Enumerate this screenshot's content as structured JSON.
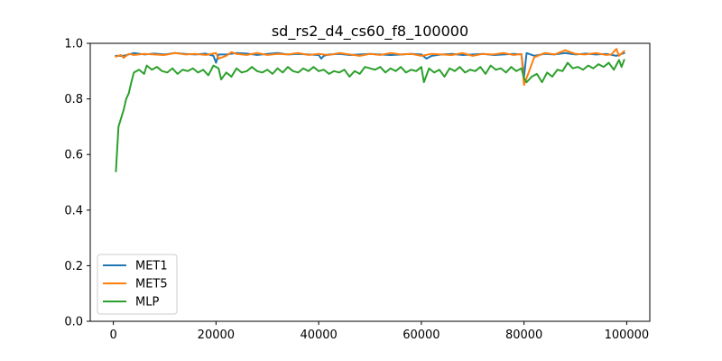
{
  "chart_data": {
    "type": "line",
    "title": "sd_rs2_d4_cs60_f8_100000",
    "xlabel": "",
    "ylabel": "",
    "xlim": [
      -4500,
      104500
    ],
    "ylim": [
      0.0,
      1.0
    ],
    "x_ticks": [
      0,
      20000,
      40000,
      60000,
      80000,
      100000
    ],
    "x_tick_labels": [
      "0",
      "20000",
      "40000",
      "60000",
      "80000",
      "100000"
    ],
    "y_ticks": [
      0.0,
      0.2,
      0.4,
      0.6,
      0.8,
      1.0
    ],
    "y_tick_labels": [
      "0.0",
      "0.2",
      "0.4",
      "0.6",
      "0.8",
      "1.0"
    ],
    "grid": false,
    "legend_position": "lower-left",
    "series": [
      {
        "name": "MET1",
        "color": "#1f77b4",
        "points": [
          [
            500,
            0.955
          ],
          [
            2000,
            0.955
          ],
          [
            3000,
            0.96
          ],
          [
            4000,
            0.965
          ],
          [
            6000,
            0.96
          ],
          [
            8000,
            0.963
          ],
          [
            10000,
            0.96
          ],
          [
            12000,
            0.965
          ],
          [
            14000,
            0.962
          ],
          [
            16000,
            0.96
          ],
          [
            18000,
            0.963
          ],
          [
            19500,
            0.955
          ],
          [
            20000,
            0.93
          ],
          [
            20500,
            0.96
          ],
          [
            22000,
            0.96
          ],
          [
            24000,
            0.965
          ],
          [
            26000,
            0.963
          ],
          [
            28000,
            0.958
          ],
          [
            30000,
            0.962
          ],
          [
            32000,
            0.965
          ],
          [
            34000,
            0.96
          ],
          [
            36000,
            0.962
          ],
          [
            38000,
            0.96
          ],
          [
            40000,
            0.958
          ],
          [
            40500,
            0.945
          ],
          [
            41000,
            0.955
          ],
          [
            42000,
            0.96
          ],
          [
            44000,
            0.962
          ],
          [
            46000,
            0.958
          ],
          [
            48000,
            0.96
          ],
          [
            50000,
            0.962
          ],
          [
            52000,
            0.96
          ],
          [
            54000,
            0.958
          ],
          [
            56000,
            0.96
          ],
          [
            58000,
            0.962
          ],
          [
            60000,
            0.96
          ],
          [
            61000,
            0.945
          ],
          [
            62000,
            0.955
          ],
          [
            64000,
            0.96
          ],
          [
            66000,
            0.962
          ],
          [
            68000,
            0.958
          ],
          [
            70000,
            0.96
          ],
          [
            72000,
            0.962
          ],
          [
            74000,
            0.958
          ],
          [
            76000,
            0.96
          ],
          [
            78000,
            0.962
          ],
          [
            79500,
            0.96
          ],
          [
            80000,
            0.88
          ],
          [
            80500,
            0.965
          ],
          [
            82000,
            0.955
          ],
          [
            84000,
            0.962
          ],
          [
            86000,
            0.96
          ],
          [
            88000,
            0.965
          ],
          [
            90000,
            0.96
          ],
          [
            92000,
            0.963
          ],
          [
            94000,
            0.96
          ],
          [
            96000,
            0.962
          ],
          [
            98000,
            0.955
          ],
          [
            99500,
            0.965
          ]
        ]
      },
      {
        "name": "MET5",
        "color": "#ff7f0e",
        "points": [
          [
            500,
            0.952
          ],
          [
            1500,
            0.958
          ],
          [
            2000,
            0.948
          ],
          [
            3000,
            0.962
          ],
          [
            4000,
            0.958
          ],
          [
            6000,
            0.962
          ],
          [
            8000,
            0.96
          ],
          [
            10000,
            0.958
          ],
          [
            12000,
            0.965
          ],
          [
            14000,
            0.96
          ],
          [
            16000,
            0.962
          ],
          [
            18000,
            0.958
          ],
          [
            20000,
            0.965
          ],
          [
            20500,
            0.945
          ],
          [
            22000,
            0.955
          ],
          [
            23000,
            0.968
          ],
          [
            24000,
            0.962
          ],
          [
            26000,
            0.958
          ],
          [
            28000,
            0.965
          ],
          [
            30000,
            0.958
          ],
          [
            32000,
            0.962
          ],
          [
            34000,
            0.96
          ],
          [
            36000,
            0.965
          ],
          [
            38000,
            0.958
          ],
          [
            40000,
            0.962
          ],
          [
            42000,
            0.958
          ],
          [
            44000,
            0.965
          ],
          [
            46000,
            0.96
          ],
          [
            48000,
            0.955
          ],
          [
            50000,
            0.962
          ],
          [
            52000,
            0.958
          ],
          [
            54000,
            0.965
          ],
          [
            56000,
            0.96
          ],
          [
            58000,
            0.962
          ],
          [
            60000,
            0.955
          ],
          [
            62000,
            0.962
          ],
          [
            64000,
            0.96
          ],
          [
            66000,
            0.958
          ],
          [
            68000,
            0.965
          ],
          [
            70000,
            0.955
          ],
          [
            72000,
            0.962
          ],
          [
            74000,
            0.96
          ],
          [
            76000,
            0.965
          ],
          [
            78000,
            0.958
          ],
          [
            79500,
            0.962
          ],
          [
            80000,
            0.85
          ],
          [
            81000,
            0.9
          ],
          [
            82000,
            0.95
          ],
          [
            84000,
            0.965
          ],
          [
            86000,
            0.96
          ],
          [
            88000,
            0.975
          ],
          [
            90000,
            0.962
          ],
          [
            92000,
            0.96
          ],
          [
            94000,
            0.965
          ],
          [
            96000,
            0.958
          ],
          [
            97000,
            0.96
          ],
          [
            98000,
            0.98
          ],
          [
            98500,
            0.955
          ],
          [
            99500,
            0.972
          ]
        ]
      },
      {
        "name": "MLP",
        "color": "#2ca02c",
        "points": [
          [
            500,
            0.54
          ],
          [
            1000,
            0.7
          ],
          [
            2000,
            0.76
          ],
          [
            2500,
            0.8
          ],
          [
            3000,
            0.82
          ],
          [
            3500,
            0.86
          ],
          [
            4000,
            0.895
          ],
          [
            5000,
            0.905
          ],
          [
            6000,
            0.89
          ],
          [
            6500,
            0.92
          ],
          [
            7500,
            0.905
          ],
          [
            8500,
            0.915
          ],
          [
            9500,
            0.9
          ],
          [
            10500,
            0.895
          ],
          [
            11500,
            0.91
          ],
          [
            12500,
            0.89
          ],
          [
            13500,
            0.905
          ],
          [
            14500,
            0.9
          ],
          [
            15500,
            0.91
          ],
          [
            16500,
            0.895
          ],
          [
            17500,
            0.905
          ],
          [
            18500,
            0.885
          ],
          [
            19500,
            0.92
          ],
          [
            20500,
            0.91
          ],
          [
            21000,
            0.87
          ],
          [
            22000,
            0.895
          ],
          [
            23000,
            0.88
          ],
          [
            24000,
            0.91
          ],
          [
            25000,
            0.895
          ],
          [
            26000,
            0.9
          ],
          [
            27000,
            0.915
          ],
          [
            28000,
            0.9
          ],
          [
            29000,
            0.895
          ],
          [
            30000,
            0.905
          ],
          [
            31000,
            0.89
          ],
          [
            32000,
            0.91
          ],
          [
            33000,
            0.895
          ],
          [
            34000,
            0.915
          ],
          [
            35000,
            0.9
          ],
          [
            36000,
            0.895
          ],
          [
            37000,
            0.91
          ],
          [
            38000,
            0.9
          ],
          [
            39000,
            0.915
          ],
          [
            40000,
            0.9
          ],
          [
            41000,
            0.905
          ],
          [
            42000,
            0.89
          ],
          [
            43000,
            0.9
          ],
          [
            44000,
            0.895
          ],
          [
            45000,
            0.905
          ],
          [
            46000,
            0.88
          ],
          [
            47000,
            0.9
          ],
          [
            48000,
            0.89
          ],
          [
            49000,
            0.915
          ],
          [
            50000,
            0.91
          ],
          [
            51000,
            0.905
          ],
          [
            52000,
            0.915
          ],
          [
            53000,
            0.895
          ],
          [
            54000,
            0.91
          ],
          [
            55000,
            0.9
          ],
          [
            56000,
            0.915
          ],
          [
            57000,
            0.895
          ],
          [
            58000,
            0.905
          ],
          [
            59000,
            0.9
          ],
          [
            60000,
            0.915
          ],
          [
            60500,
            0.86
          ],
          [
            61500,
            0.91
          ],
          [
            62500,
            0.895
          ],
          [
            63500,
            0.905
          ],
          [
            64500,
            0.88
          ],
          [
            65500,
            0.91
          ],
          [
            66500,
            0.9
          ],
          [
            67500,
            0.915
          ],
          [
            68500,
            0.895
          ],
          [
            69500,
            0.905
          ],
          [
            70500,
            0.9
          ],
          [
            71500,
            0.915
          ],
          [
            72500,
            0.89
          ],
          [
            73500,
            0.92
          ],
          [
            74500,
            0.905
          ],
          [
            75500,
            0.91
          ],
          [
            76500,
            0.895
          ],
          [
            77500,
            0.915
          ],
          [
            78500,
            0.9
          ],
          [
            79500,
            0.91
          ],
          [
            80000,
            0.875
          ],
          [
            80500,
            0.86
          ],
          [
            81500,
            0.88
          ],
          [
            82500,
            0.89
          ],
          [
            83500,
            0.86
          ],
          [
            84500,
            0.895
          ],
          [
            85500,
            0.88
          ],
          [
            86500,
            0.905
          ],
          [
            87500,
            0.9
          ],
          [
            88500,
            0.93
          ],
          [
            89500,
            0.91
          ],
          [
            90500,
            0.915
          ],
          [
            91500,
            0.905
          ],
          [
            92500,
            0.92
          ],
          [
            93500,
            0.91
          ],
          [
            94500,
            0.925
          ],
          [
            95500,
            0.915
          ],
          [
            96500,
            0.93
          ],
          [
            97500,
            0.905
          ],
          [
            98500,
            0.94
          ],
          [
            99000,
            0.915
          ],
          [
            99500,
            0.94
          ]
        ]
      }
    ]
  }
}
